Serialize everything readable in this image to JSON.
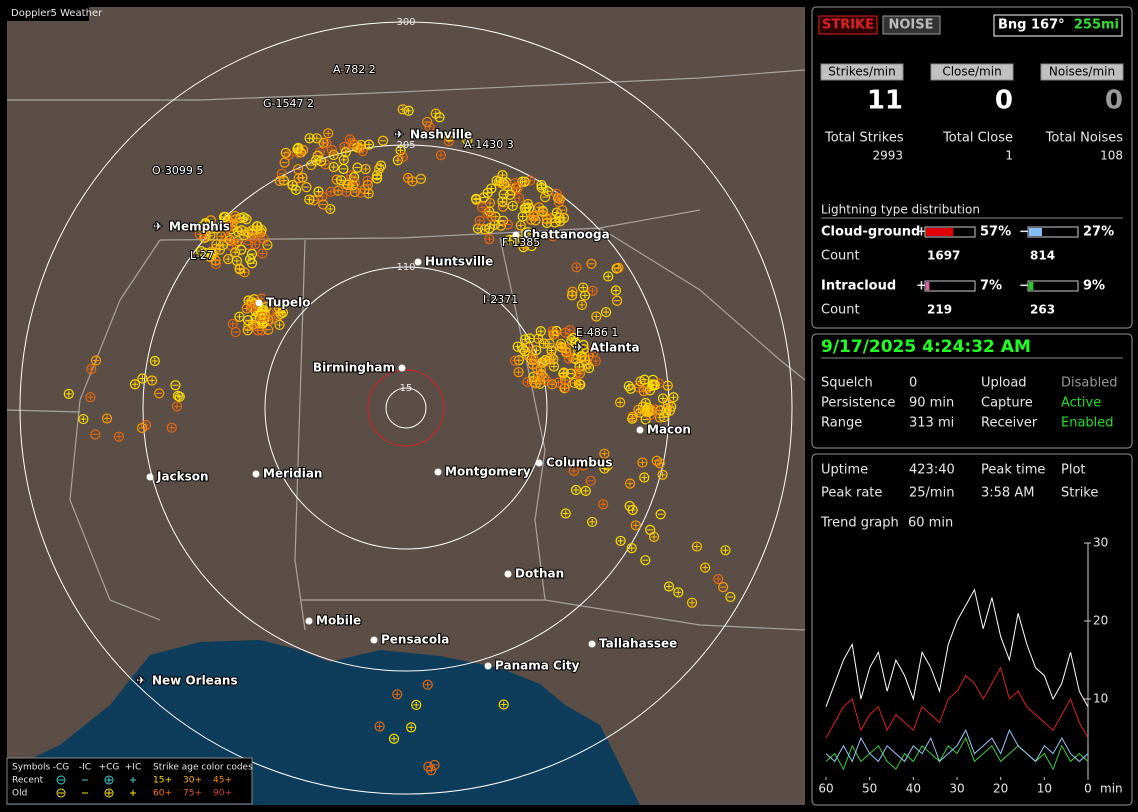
{
  "app_title": "Doppler5 Weather",
  "map": {
    "ring_labels": [
      300,
      205,
      110,
      15
    ],
    "cities": [
      "Nashville",
      "Memphis",
      "Chattanooga",
      "Huntsville",
      "Tupelo",
      "Birmingham",
      "Atlanta",
      "Macon",
      "Jackson",
      "Meridian",
      "Montgomery",
      "Columbus",
      "Dothan",
      "Mobile",
      "Pensacola",
      "Panama City",
      "Tallahassee",
      "New Orleans"
    ],
    "strike_labels": [
      "A-782 2",
      "G-1547 2",
      "O-3099 5",
      "A-1430 3",
      "L-27",
      "F-1385",
      "I-2371",
      "E-486 1"
    ]
  },
  "legend": {
    "symbols_title": "Symbols",
    "symbol_headers": [
      "-CG",
      "-IC",
      "+CG",
      "+IC"
    ],
    "age_title": "Strike age color codes",
    "rows": [
      {
        "label": "Recent",
        "ages": [
          "15+",
          "30+",
          "45+"
        ]
      },
      {
        "label": "Old",
        "ages": [
          "60+",
          "75+",
          "90+"
        ]
      }
    ]
  },
  "status": {
    "modes": [
      "STRIKE",
      "NOISE"
    ],
    "bearing": "Bng 167°",
    "distance": "255mi",
    "rate_headers": [
      "Strikes/min",
      "Close/min",
      "Noises/min"
    ],
    "rates": [
      11,
      0,
      0
    ],
    "total_labels": [
      "Total Strikes",
      "Total Close",
      "Total Noises"
    ],
    "totals": [
      2993,
      1,
      108
    ]
  },
  "distribution": {
    "title": "Lightning type distribution",
    "signs": [
      "+",
      "−"
    ],
    "count_label": "Count",
    "rows": [
      {
        "name": "Cloud-ground",
        "values": [
          57,
          27
        ],
        "value_labels": [
          "57%",
          "27%"
        ],
        "counts": [
          1697,
          814
        ]
      },
      {
        "name": "Intracloud",
        "values": [
          7,
          9
        ],
        "value_labels": [
          "7%",
          "9%"
        ],
        "counts": [
          219,
          263
        ]
      }
    ]
  },
  "settings": {
    "datetime": "9/17/2025 4:24:32 AM",
    "rows": [
      [
        "Squelch",
        0,
        "Upload",
        "Disabled"
      ],
      [
        "Persistence",
        "90 min",
        "Capture",
        "Active"
      ],
      [
        "Range",
        "313 mi",
        "Receiver",
        "Enabled"
      ]
    ]
  },
  "stats": {
    "rows": [
      [
        "Uptime",
        "423:40",
        "Peak time",
        "Plot"
      ],
      [
        "Peak rate",
        "25/min",
        "3:58 AM",
        "Strike"
      ]
    ],
    "trend": [
      "Trend graph",
      "60 min"
    ]
  },
  "chart_data": {
    "type": "line",
    "x_unit": "min",
    "x": [
      60,
      58,
      56,
      54,
      52,
      50,
      48,
      46,
      44,
      42,
      40,
      38,
      36,
      34,
      32,
      30,
      28,
      26,
      24,
      22,
      20,
      18,
      16,
      14,
      12,
      10,
      8,
      6,
      4,
      2,
      0
    ],
    "xlim": [
      60,
      0
    ],
    "xticks": [
      60,
      50,
      40,
      30,
      20,
      10,
      0
    ],
    "ylim": [
      0,
      30
    ],
    "yticks": [
      10,
      20,
      30
    ],
    "series": [
      {
        "color": "#ffffff",
        "values": [
          9,
          12,
          15,
          17,
          10,
          14,
          16,
          11,
          15,
          13,
          10,
          16,
          14,
          11,
          17,
          20,
          22,
          24,
          19,
          23,
          18,
          15,
          21,
          17,
          14,
          13,
          10,
          12,
          16,
          11,
          9
        ]
      },
      {
        "color": "#e02020",
        "values": [
          5,
          7,
          9,
          10,
          6,
          8,
          9,
          6,
          8,
          7,
          6,
          9,
          8,
          7,
          10,
          11,
          13,
          12,
          10,
          12,
          14,
          10,
          11,
          9,
          8,
          7,
          6,
          8,
          10,
          7,
          5
        ]
      },
      {
        "color": "#90c8ff",
        "values": [
          3,
          2,
          4,
          2,
          5,
          3,
          2,
          4,
          3,
          2,
          4,
          3,
          5,
          2,
          3,
          4,
          6,
          3,
          4,
          5,
          3,
          6,
          4,
          3,
          2,
          4,
          3,
          5,
          3,
          2,
          3
        ]
      },
      {
        "color": "#30d030",
        "values": [
          2,
          3,
          1,
          4,
          2,
          3,
          4,
          2,
          1,
          3,
          2,
          4,
          3,
          2,
          4,
          3,
          5,
          2,
          3,
          4,
          2,
          3,
          4,
          3,
          2,
          3,
          1,
          4,
          2,
          3,
          2
        ]
      }
    ]
  }
}
